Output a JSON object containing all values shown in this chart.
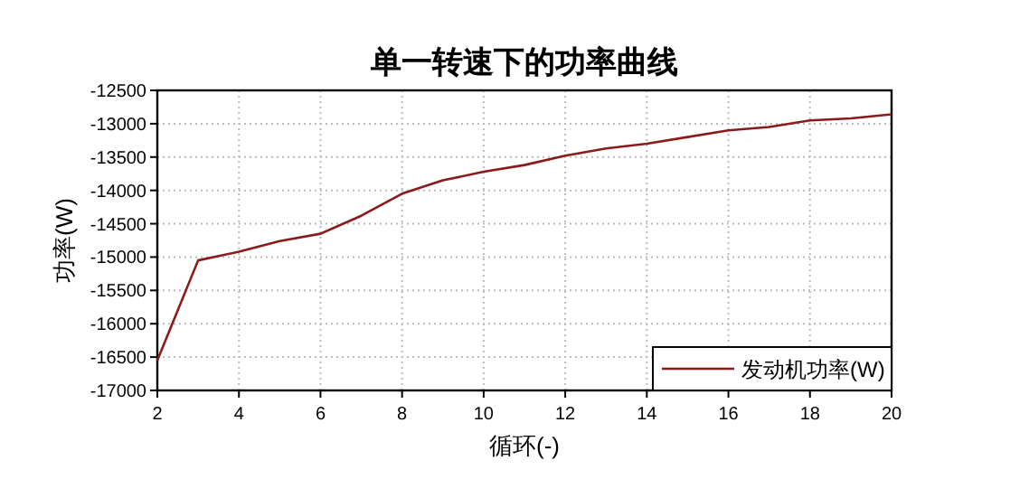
{
  "chart_data": {
    "type": "line",
    "title": "单一转速下的功率曲线",
    "xlabel": "循环(-)",
    "ylabel": "功率(W)",
    "x": [
      2,
      3,
      4,
      5,
      6,
      7,
      8,
      9,
      10,
      11,
      12,
      13,
      14,
      15,
      16,
      17,
      18,
      19,
      20
    ],
    "series": [
      {
        "name": "发动机功率(W)",
        "color": "#8b1a1a",
        "values": [
          -16550,
          -15050,
          -14920,
          -14760,
          -14650,
          -14380,
          -14050,
          -13850,
          -13720,
          -13620,
          -13480,
          -13370,
          -13300,
          -13200,
          -13100,
          -13050,
          -12950,
          -12920,
          -12860
        ]
      }
    ],
    "xlim": [
      2,
      20
    ],
    "xticks": [
      2,
      4,
      6,
      8,
      10,
      12,
      14,
      16,
      18,
      20
    ],
    "ylim": [
      -17000,
      -12500
    ],
    "yticks": [
      -17000,
      -16500,
      -16000,
      -15500,
      -15000,
      -14500,
      -14000,
      -13500,
      -13000,
      -12500
    ],
    "grid": true,
    "legend": "bottom right",
    "marker": "none",
    "line_style": "solid"
  }
}
